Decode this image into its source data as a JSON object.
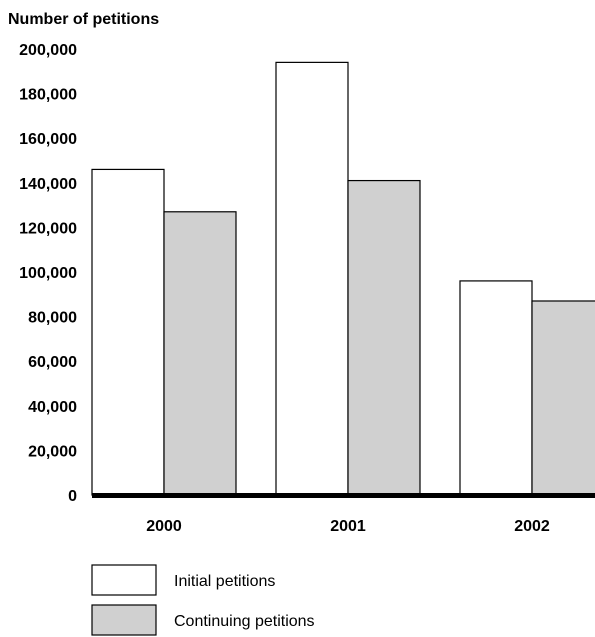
{
  "chart_data": {
    "type": "bar",
    "ylabel": "Number of petitions",
    "categories": [
      "2000",
      "2001",
      "2002"
    ],
    "series": [
      {
        "name": "Initial petitions",
        "values": [
          146000,
          194000,
          96000
        ],
        "color": "#ffffff"
      },
      {
        "name": "Continuing petitions",
        "values": [
          127000,
          141000,
          87000
        ],
        "color": "#d0d0d0"
      }
    ],
    "ylim": [
      0,
      200000
    ],
    "yticks": [
      "0",
      "20,000",
      "40,000",
      "60,000",
      "80,000",
      "100,000",
      "120,000",
      "140,000",
      "160,000",
      "180,000",
      "200,000"
    ],
    "ytick_values": [
      0,
      20000,
      40000,
      60000,
      80000,
      100000,
      120000,
      140000,
      160000,
      180000,
      200000
    ],
    "grid": false,
    "legend_position": "bottom-left"
  }
}
